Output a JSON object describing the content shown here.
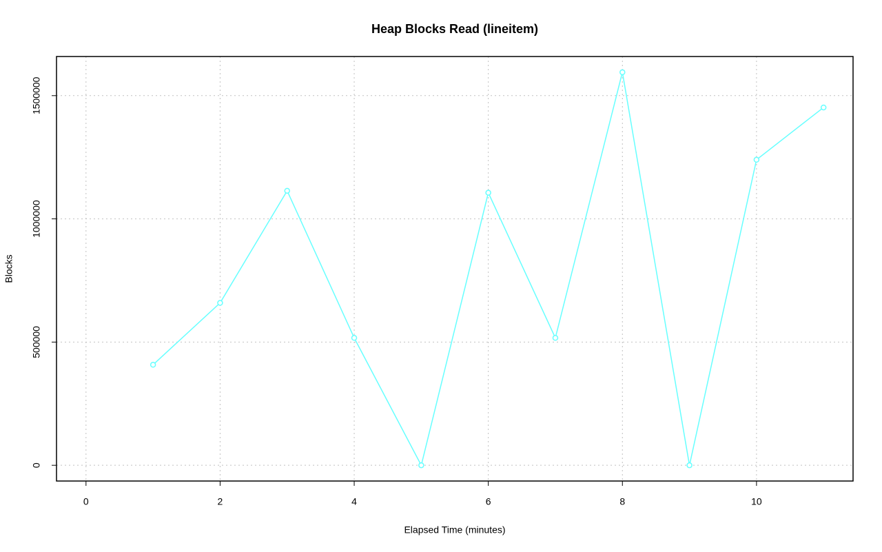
{
  "chart_data": {
    "type": "line",
    "title": "Heap Blocks Read (lineitem)",
    "x_label": "Elapsed Time (minutes)",
    "y_label": "Blocks",
    "x": [
      1,
      2,
      3,
      4,
      5,
      6,
      7,
      8,
      9,
      10,
      11
    ],
    "series": [
      {
        "name": "lineitem",
        "color": "#66ffff",
        "values": [
          408000,
          659000,
          1114000,
          517000,
          0,
          1106000,
          517000,
          1595000,
          0,
          1240000,
          1452000
        ]
      }
    ],
    "xlim": [
      -0.44,
      11.44
    ],
    "xticks": [
      0,
      2,
      4,
      6,
      8,
      10
    ],
    "ylim": [
      -63800,
      1658800
    ],
    "yticks": [
      0,
      500000,
      1000000,
      1500000
    ],
    "grid": true
  }
}
